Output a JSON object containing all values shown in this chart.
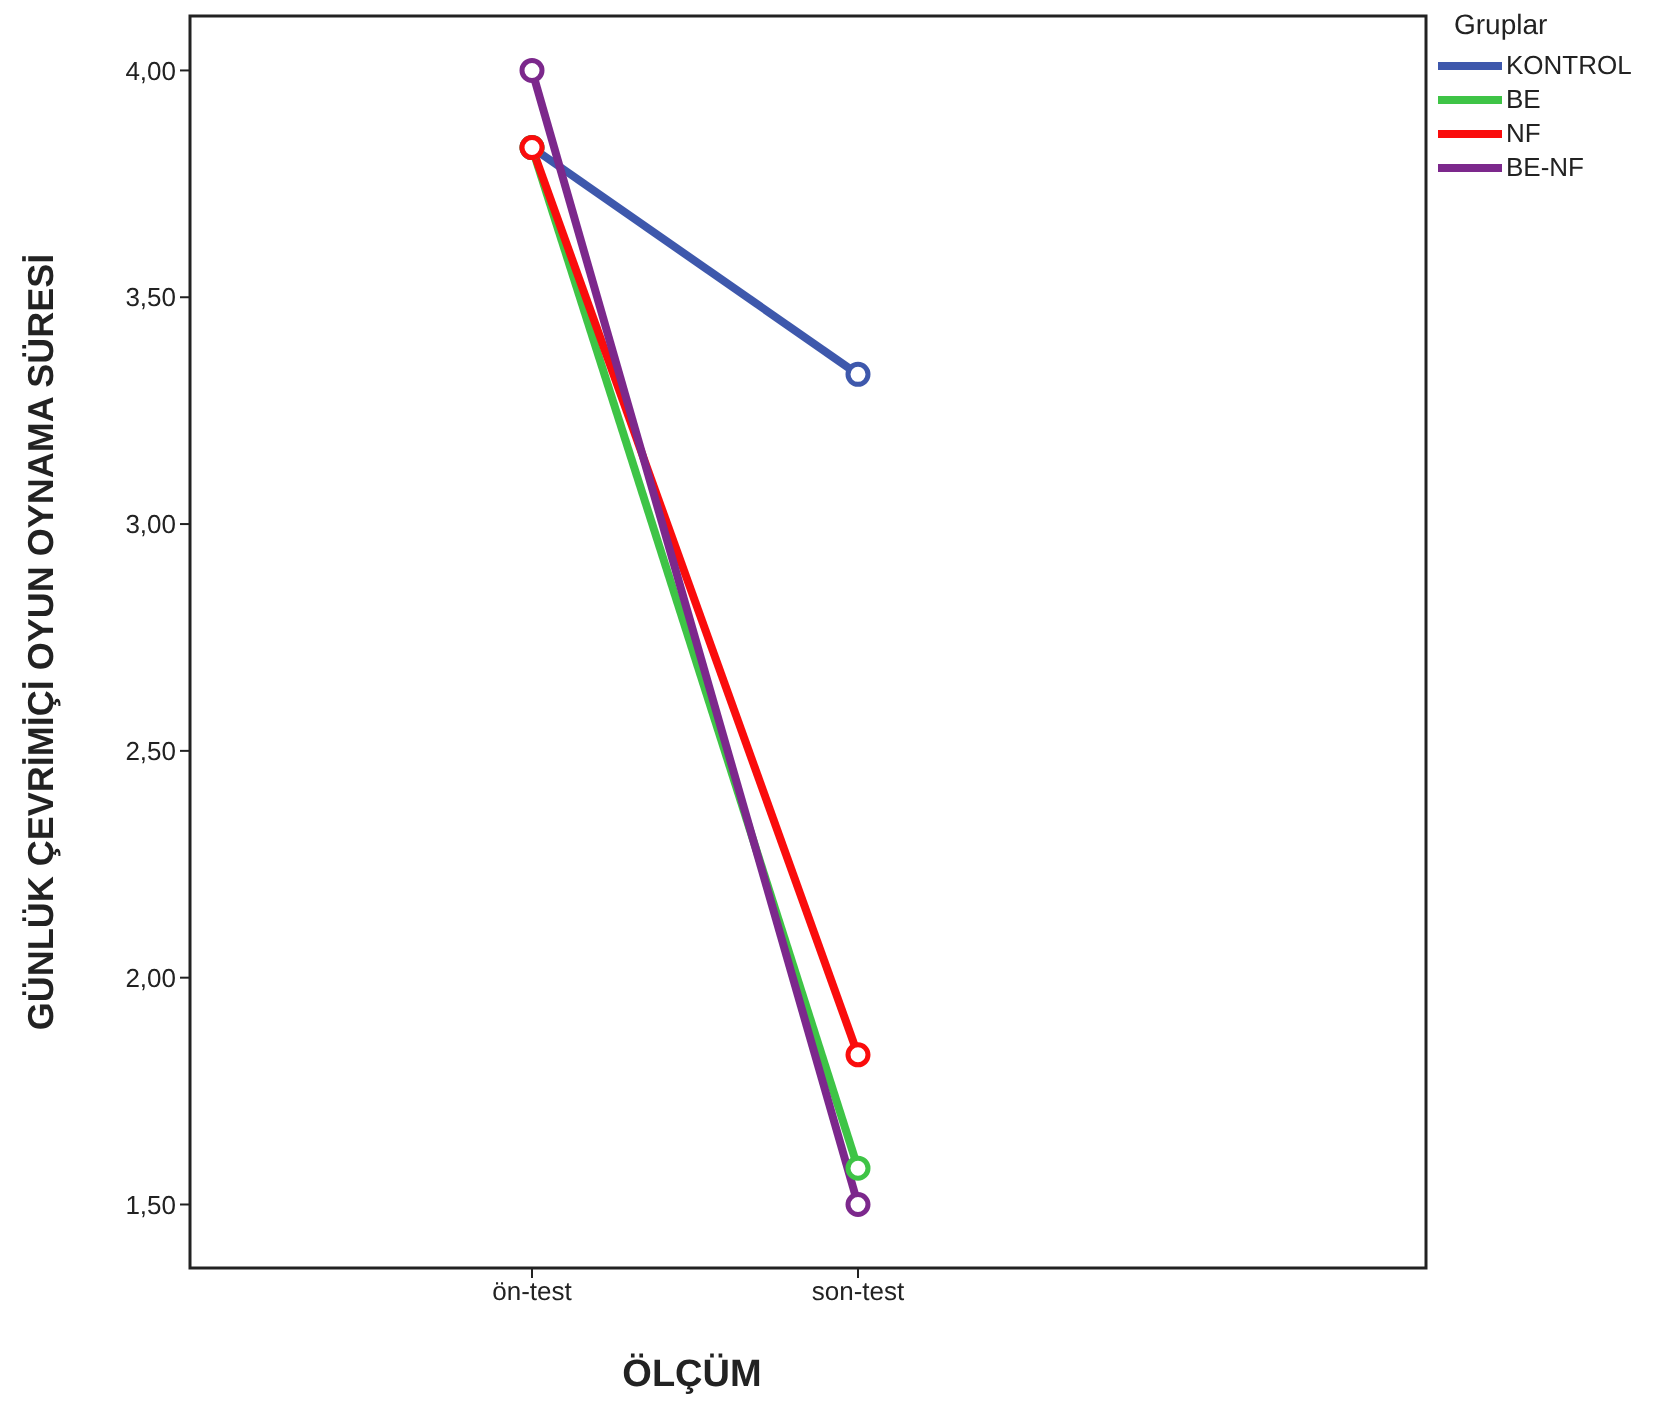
{
  "chart_data": {
    "type": "line",
    "xlabel": "ÖLÇÜM",
    "ylabel": "GÜNLÜK ÇEVRİMİÇİ OYUN OYNAMA SÜRESİ",
    "legend_title": "Gruplar",
    "legend": "top right",
    "marker": "circle",
    "line_style": "solid",
    "grid": false,
    "categories": [
      "ön-test",
      "son-test"
    ],
    "ylim": [
      1.36,
      4.12
    ],
    "yticks": [
      {
        "value": 1.5,
        "label": "1,50"
      },
      {
        "value": 2,
        "label": "2,00"
      },
      {
        "value": 2.5,
        "label": "2,50"
      },
      {
        "value": 3,
        "label": "3,00"
      },
      {
        "value": 3.5,
        "label": "3,50"
      },
      {
        "value": 4,
        "label": "4,00"
      }
    ],
    "series": [
      {
        "name": "KONTROL",
        "color": "#3e58ac",
        "values": [
          3.83,
          3.33
        ]
      },
      {
        "name": "BE",
        "color": "#3ec446",
        "values": [
          3.83,
          1.58
        ]
      },
      {
        "name": "NF",
        "color": "#fa0c0c",
        "values": [
          3.83,
          1.83
        ]
      },
      {
        "name": "BE-NF",
        "color": "#7c288c",
        "values": [
          4.0,
          1.5
        ]
      }
    ]
  }
}
